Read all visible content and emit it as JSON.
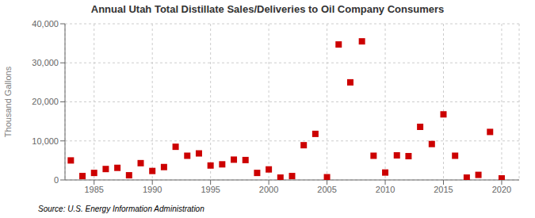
{
  "chart_data": {
    "type": "scatter",
    "title": "Annual Utah Total Distillate Sales/Deliveries to Oil Company Consumers",
    "ylabel": "Thousand Gallons",
    "annotations": [
      "Source: U.S. Energy Information Administration"
    ],
    "x": [
      1983,
      1984,
      1985,
      1986,
      1987,
      1988,
      1989,
      1990,
      1991,
      1992,
      1993,
      1994,
      1995,
      1996,
      1997,
      1998,
      1999,
      2000,
      2001,
      2002,
      2003,
      2004,
      2005,
      2006,
      2007,
      2008,
      2009,
      2010,
      2011,
      2012,
      2013,
      2014,
      2015,
      2016,
      2017,
      2018,
      2019,
      2020
    ],
    "values": [
      5000,
      1000,
      1800,
      2800,
      3100,
      1200,
      4300,
      2300,
      3300,
      8500,
      6200,
      6800,
      3700,
      4000,
      5200,
      5100,
      1800,
      2700,
      600,
      1000,
      8900,
      11800,
      700,
      34700,
      25000,
      35500,
      6200,
      1900,
      6300,
      6100,
      13600,
      9200,
      16800,
      6200,
      600,
      1300,
      12300,
      400
    ],
    "color": "#cc0000",
    "marker": "square",
    "xlim": [
      1982.5,
      2021.5
    ],
    "ylim": [
      0,
      40000
    ],
    "xticks": [
      1985,
      1990,
      1995,
      2000,
      2005,
      2010,
      2015,
      2020
    ],
    "yticks": [
      0,
      {
        "value": 10000,
        "label": "10,000"
      },
      {
        "value": 20000,
        "label": "20,000"
      },
      {
        "value": 30000,
        "label": "30,000"
      },
      {
        "value": 40000,
        "label": "40,000"
      }
    ],
    "grid": true
  }
}
